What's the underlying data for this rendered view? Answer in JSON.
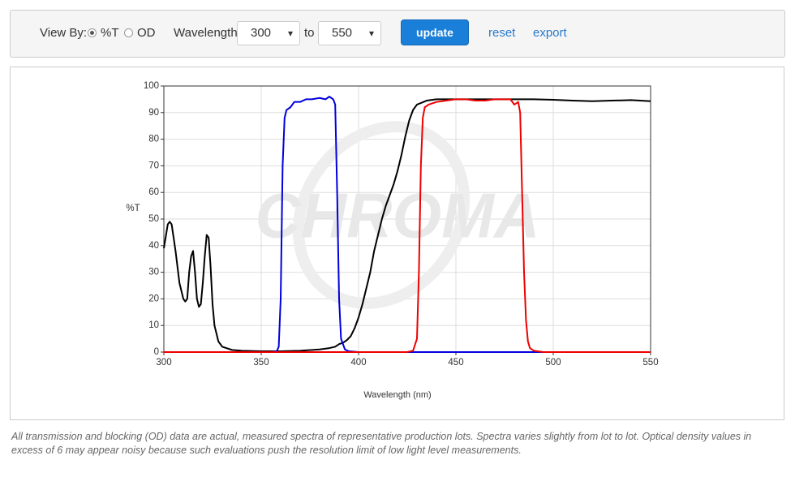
{
  "controls": {
    "view_by_label": "View By:",
    "options": [
      "%T",
      "OD"
    ],
    "wavelength_label": "Wavelength",
    "from_value": "300",
    "to_label": "to",
    "to_value": "550",
    "update_button": "update",
    "reset_link": "reset",
    "export_link": "export"
  },
  "chart_data": {
    "type": "line",
    "watermark": "CHROMA",
    "x_label": "Wavelength (nm)",
    "y_label": "%T",
    "xlim": [
      300,
      550
    ],
    "ylim": [
      0,
      100
    ],
    "xticks": [
      300,
      350,
      400,
      450,
      500,
      550
    ],
    "yticks": [
      0,
      10,
      20,
      30,
      40,
      50,
      60,
      70,
      80,
      90,
      100
    ],
    "grid": true,
    "series": [
      {
        "color": "#000000",
        "x": [
          300,
          302,
          303,
          304,
          306,
          308,
          310,
          311,
          312,
          313,
          314,
          315,
          316,
          317,
          318,
          319,
          320,
          321,
          322,
          323,
          324,
          325,
          326,
          328,
          330,
          335,
          340,
          350,
          360,
          370,
          380,
          385,
          388,
          390,
          392,
          394,
          396,
          398,
          400,
          402,
          404,
          406,
          408,
          410,
          412,
          414,
          416,
          418,
          420,
          422,
          424,
          426,
          428,
          430,
          435,
          440,
          450,
          460,
          470,
          480,
          490,
          500,
          510,
          520,
          530,
          540,
          550
        ],
        "values": [
          39,
          48,
          49,
          48,
          38,
          26,
          20,
          19,
          20,
          30,
          36,
          38,
          30,
          20,
          17,
          18,
          26,
          36,
          44,
          43,
          32,
          18,
          10,
          4,
          2,
          0.8,
          0.5,
          0.3,
          0.3,
          0.5,
          1,
          1.5,
          2,
          3,
          3.5,
          4.5,
          6,
          9,
          13,
          18,
          24,
          30,
          38,
          44,
          50,
          55,
          59,
          63,
          68,
          74,
          81,
          87,
          91,
          93,
          94.5,
          95,
          95,
          95,
          95,
          95,
          95,
          94.8,
          94.5,
          94.3,
          94.5,
          94.7,
          94.3
        ]
      },
      {
        "color": "#0000dd",
        "x": [
          300,
          355,
          358,
          359,
          360,
          361,
          362,
          363,
          365,
          367,
          370,
          373,
          376,
          380,
          383,
          385,
          387,
          388,
          389,
          390,
          391,
          393,
          395,
          400,
          550
        ],
        "values": [
          0,
          0,
          0.3,
          2,
          20,
          70,
          88,
          91,
          92,
          94,
          94,
          95,
          95,
          95.5,
          95,
          96,
          95,
          93,
          60,
          20,
          5,
          1,
          0.3,
          0,
          0
        ]
      },
      {
        "color": "#ee0000",
        "x": [
          300,
          425,
          428,
          430,
          431,
          432,
          433,
          434,
          436,
          440,
          445,
          450,
          455,
          460,
          465,
          470,
          475,
          478,
          480,
          482,
          483,
          484,
          485,
          486,
          487,
          488,
          490,
          495,
          550
        ],
        "values": [
          0,
          0,
          0.5,
          5,
          30,
          70,
          88,
          92,
          93,
          94,
          94.5,
          95,
          95,
          94.5,
          94.5,
          95,
          95,
          95,
          93,
          94,
          90,
          60,
          30,
          12,
          4,
          1.5,
          0.5,
          0,
          0
        ]
      }
    ]
  },
  "footnote": "All transmission and blocking (OD) data are actual, measured spectra of representative production lots. Spectra varies slightly from lot to lot. Optical density values in excess of 6 may appear noisy because such evaluations push the resolution limit of low light level measurements."
}
